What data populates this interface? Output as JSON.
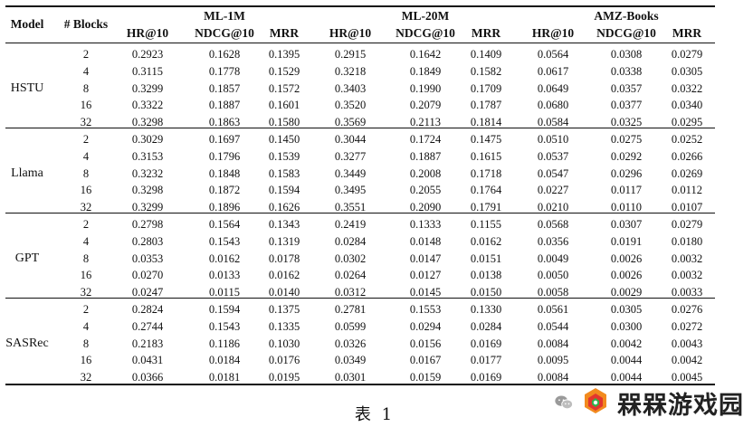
{
  "table": {
    "headers": {
      "model": "Model",
      "blocks": "# Blocks",
      "datasets": [
        "ML-1M",
        "ML-20M",
        "AMZ-Books"
      ],
      "metrics": [
        "HR@10",
        "NDCG@10",
        "MRR"
      ]
    },
    "groups": [
      {
        "model": "HSTU",
        "rows": [
          {
            "blocks": "2",
            "values": [
              "0.2923",
              "0.1628",
              "0.1395",
              "0.2915",
              "0.1642",
              "0.1409",
              "0.0564",
              "0.0308",
              "0.0279"
            ]
          },
          {
            "blocks": "4",
            "values": [
              "0.3115",
              "0.1778",
              "0.1529",
              "0.3218",
              "0.1849",
              "0.1582",
              "0.0617",
              "0.0338",
              "0.0305"
            ]
          },
          {
            "blocks": "8",
            "values": [
              "0.3299",
              "0.1857",
              "0.1572",
              "0.3403",
              "0.1990",
              "0.1709",
              "0.0649",
              "0.0357",
              "0.0322"
            ]
          },
          {
            "blocks": "16",
            "values": [
              "0.3322",
              "0.1887",
              "0.1601",
              "0.3520",
              "0.2079",
              "0.1787",
              "0.0680",
              "0.0377",
              "0.0340"
            ]
          },
          {
            "blocks": "32",
            "values": [
              "0.3298",
              "0.1863",
              "0.1580",
              "0.3569",
              "0.2113",
              "0.1814",
              "0.0584",
              "0.0325",
              "0.0295"
            ]
          }
        ]
      },
      {
        "model": "Llama",
        "rows": [
          {
            "blocks": "2",
            "values": [
              "0.3029",
              "0.1697",
              "0.1450",
              "0.3044",
              "0.1724",
              "0.1475",
              "0.0510",
              "0.0275",
              "0.0252"
            ]
          },
          {
            "blocks": "4",
            "values": [
              "0.3153",
              "0.1796",
              "0.1539",
              "0.3277",
              "0.1887",
              "0.1615",
              "0.0537",
              "0.0292",
              "0.0266"
            ]
          },
          {
            "blocks": "8",
            "values": [
              "0.3232",
              "0.1848",
              "0.1583",
              "0.3449",
              "0.2008",
              "0.1718",
              "0.0547",
              "0.0296",
              "0.0269"
            ]
          },
          {
            "blocks": "16",
            "values": [
              "0.3298",
              "0.1872",
              "0.1594",
              "0.3495",
              "0.2055",
              "0.1764",
              "0.0227",
              "0.0117",
              "0.0112"
            ]
          },
          {
            "blocks": "32",
            "values": [
              "0.3299",
              "0.1896",
              "0.1626",
              "0.3551",
              "0.2090",
              "0.1791",
              "0.0210",
              "0.0110",
              "0.0107"
            ]
          }
        ]
      },
      {
        "model": "GPT",
        "rows": [
          {
            "blocks": "2",
            "values": [
              "0.2798",
              "0.1564",
              "0.1343",
              "0.2419",
              "0.1333",
              "0.1155",
              "0.0568",
              "0.0307",
              "0.0279"
            ]
          },
          {
            "blocks": "4",
            "values": [
              "0.2803",
              "0.1543",
              "0.1319",
              "0.0284",
              "0.0148",
              "0.0162",
              "0.0356",
              "0.0191",
              "0.0180"
            ]
          },
          {
            "blocks": "8",
            "values": [
              "0.0353",
              "0.0162",
              "0.0178",
              "0.0302",
              "0.0147",
              "0.0151",
              "0.0049",
              "0.0026",
              "0.0032"
            ]
          },
          {
            "blocks": "16",
            "values": [
              "0.0270",
              "0.0133",
              "0.0162",
              "0.0264",
              "0.0127",
              "0.0138",
              "0.0050",
              "0.0026",
              "0.0032"
            ]
          },
          {
            "blocks": "32",
            "values": [
              "0.0247",
              "0.0115",
              "0.0140",
              "0.0312",
              "0.0145",
              "0.0150",
              "0.0058",
              "0.0029",
              "0.0033"
            ]
          }
        ]
      },
      {
        "model": "SASRec",
        "rows": [
          {
            "blocks": "2",
            "values": [
              "0.2824",
              "0.1594",
              "0.1375",
              "0.2781",
              "0.1553",
              "0.1330",
              "0.0561",
              "0.0305",
              "0.0276"
            ]
          },
          {
            "blocks": "4",
            "values": [
              "0.2744",
              "0.1543",
              "0.1335",
              "0.0599",
              "0.0294",
              "0.0284",
              "0.0544",
              "0.0300",
              "0.0272"
            ]
          },
          {
            "blocks": "8",
            "values": [
              "0.2183",
              "0.1186",
              "0.1030",
              "0.0326",
              "0.0156",
              "0.0169",
              "0.0084",
              "0.0042",
              "0.0043"
            ]
          },
          {
            "blocks": "16",
            "values": [
              "0.0431",
              "0.0184",
              "0.0176",
              "0.0349",
              "0.0167",
              "0.0177",
              "0.0095",
              "0.0044",
              "0.0042"
            ]
          },
          {
            "blocks": "32",
            "values": [
              "0.0366",
              "0.0181",
              "0.0195",
              "0.0301",
              "0.0159",
              "0.0169",
              "0.0084",
              "0.0044",
              "0.0045"
            ]
          }
        ]
      }
    ]
  },
  "caption": "表 1",
  "watermark": {
    "text": "槑槑游戏园",
    "icon": "wechat-icon",
    "logo": "site-logo-icon"
  }
}
